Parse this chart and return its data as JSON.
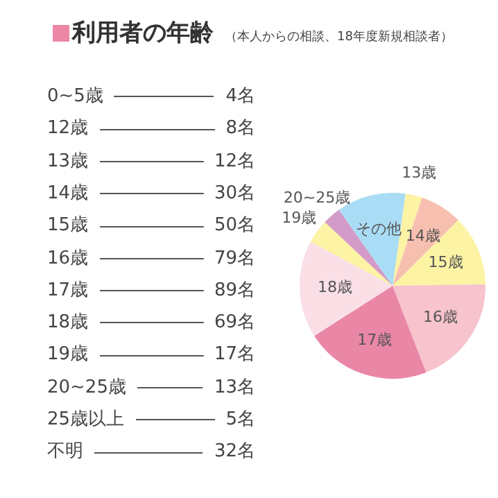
{
  "chart_data": [
    {
      "type": "other",
      "title": "利用者の年齢",
      "subtitle": "（本人からの相談、18年度新規相談者）",
      "annotations": [
        "0~5歳",
        "4名",
        "12歳",
        "8名",
        "13歳",
        "12名",
        "14歳",
        "30名",
        "15歳",
        "50名",
        "16歳",
        "79名",
        "17歳",
        "89名",
        "18歳",
        "69名",
        "19歳",
        "17名",
        "20~25歳",
        "13名",
        "25歳以上",
        "5名",
        "不明",
        "32名"
      ]
    },
    {
      "type": "pie",
      "legend": false,
      "categories": [
        "13歳",
        "14歳",
        "15歳",
        "16歳",
        "17歳",
        "18歳",
        "19歳",
        "20~25歳",
        "その他"
      ],
      "values": [
        2.94,
        7.35,
        12.25,
        19.36,
        21.81,
        16.91,
        4.17,
        3.19,
        12.02
      ],
      "colors": [
        "#fcf3a4",
        "#f7bfb0",
        "#fcf3a4",
        "#f7c3cd",
        "#ea87a6",
        "#fadfe7",
        "#fcf3a4",
        "#d39bc7",
        "#a9dcf5"
      ]
    }
  ]
}
